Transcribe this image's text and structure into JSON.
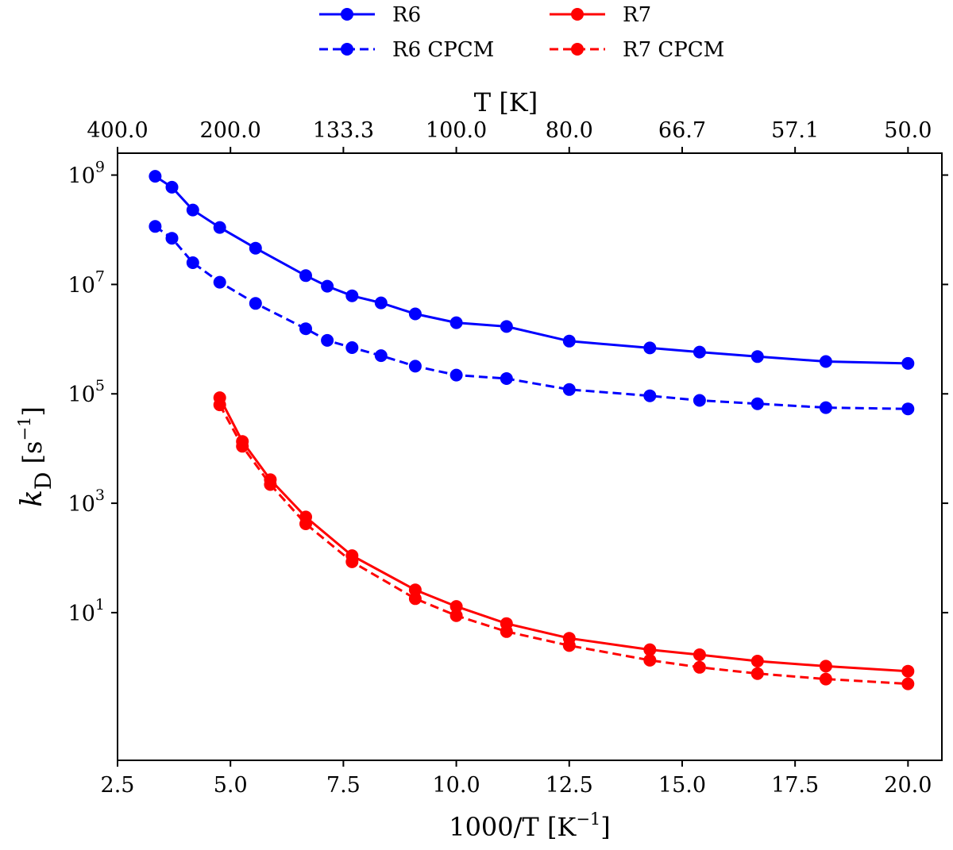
{
  "chart_data": {
    "type": "line",
    "yscale": "log",
    "xlabel": "1000/T [K",
    "xlabel_sup": "−1",
    "xlabel_suffix": "]",
    "x2label": "T [K]",
    "ylabel_main": "k",
    "ylabel_sub": "D",
    "ylabel_unit": "[s",
    "ylabel_unit_sup": "−1",
    "ylabel_unit_suffix": "]",
    "xlim": [
      2.5,
      20.75
    ],
    "ylim_exp": [
      -1.7,
      9.4
    ],
    "xticks": [
      2.5,
      5.0,
      7.5,
      10.0,
      12.5,
      15.0,
      17.5,
      20.0
    ],
    "xtick_labels": [
      "2.5",
      "5.0",
      "7.5",
      "10.0",
      "12.5",
      "15.0",
      "17.5",
      "20.0"
    ],
    "x2ticks": [
      2.5,
      5.0,
      7.5,
      10.0,
      12.5,
      15.0,
      17.5,
      20.0
    ],
    "x2tick_labels": [
      "400.0",
      "200.0",
      "133.3",
      "100.0",
      "80.0",
      "66.7",
      "57.1",
      "50.0"
    ],
    "yticks_exp": [
      1,
      3,
      5,
      7,
      9
    ],
    "ytick_base": "10",
    "ytick_exps": [
      "1",
      "3",
      "5",
      "7",
      "9"
    ],
    "legend_position": "top-center-outside",
    "series": [
      {
        "name": "R6",
        "color": "#0000ff",
        "dash": "solid",
        "x": [
          3.333,
          3.704,
          4.167,
          4.762,
          5.556,
          6.667,
          7.143,
          7.692,
          8.333,
          9.091,
          10.0,
          11.111,
          12.5,
          14.286,
          15.385,
          16.667,
          18.182,
          20.0
        ],
        "y": [
          950000000.0,
          600000000.0,
          230000000.0,
          110000000.0,
          46000000.0,
          14500000.0,
          9300000.0,
          6200000.0,
          4600000.0,
          2900000.0,
          2000000.0,
          1700000.0,
          920000.0,
          690000.0,
          580000.0,
          480000.0,
          390000.0,
          360000.0
        ]
      },
      {
        "name": "R6 CPCM",
        "color": "#0000ff",
        "dash": "dashed",
        "x": [
          3.333,
          3.704,
          4.167,
          4.762,
          5.556,
          6.667,
          7.143,
          7.692,
          8.333,
          9.091,
          10.0,
          11.111,
          12.5,
          14.286,
          15.385,
          16.667,
          18.182,
          20.0
        ],
        "y": [
          115000000.0,
          70000000.0,
          25000000.0,
          11000000.0,
          4500000.0,
          1550000.0,
          950000.0,
          700000.0,
          500000.0,
          320000.0,
          220000.0,
          190000.0,
          120000.0,
          92000.0,
          76000.0,
          66000.0,
          56000.0,
          53000.0
        ]
      },
      {
        "name": "R7",
        "color": "#ff0000",
        "dash": "solid",
        "x": [
          4.762,
          5.263,
          5.882,
          6.667,
          7.692,
          9.091,
          10.0,
          11.111,
          12.5,
          14.286,
          15.385,
          16.667,
          18.182,
          20.0
        ],
        "y": [
          85000.0,
          13500.0,
          2700.0,
          560,
          110,
          26,
          13,
          6.3,
          3.4,
          2.1,
          1.7,
          1.3,
          1.05,
          0.85
        ]
      },
      {
        "name": "R7 CPCM",
        "color": "#ff0000",
        "dash": "dashed",
        "x": [
          4.762,
          5.263,
          5.882,
          6.667,
          7.692,
          9.091,
          10.0,
          11.111,
          12.5,
          14.286,
          15.385,
          16.667,
          18.182,
          20.0
        ],
        "y": [
          63000.0,
          11000.0,
          2200.0,
          420,
          85,
          18,
          8.8,
          4.5,
          2.5,
          1.35,
          1.0,
          0.77,
          0.61,
          0.5
        ]
      }
    ]
  }
}
